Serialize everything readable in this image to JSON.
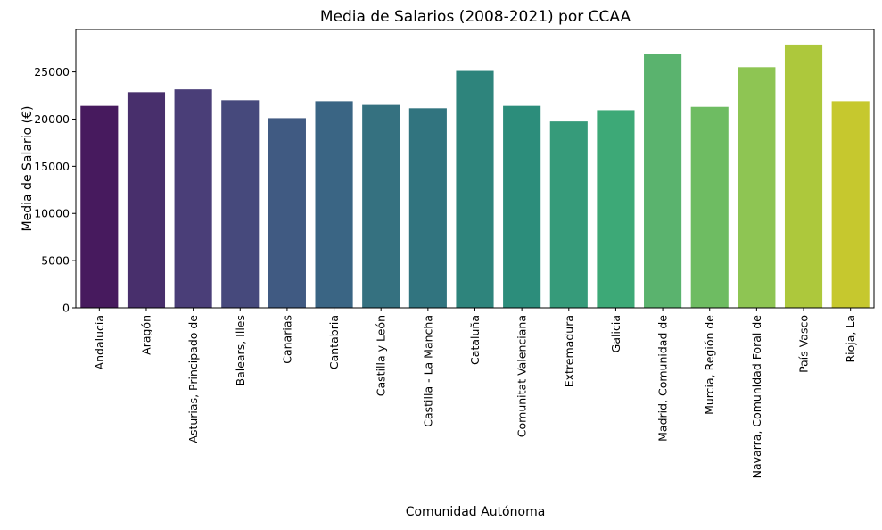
{
  "chart_data": {
    "type": "bar",
    "title": "Media de Salarios (2008-2021) por CCAA",
    "xlabel": "Comunidad Autónoma",
    "ylabel": "Media de Salario (€)",
    "ylim": [
      0,
      29500
    ],
    "yticks": [
      0,
      5000,
      10000,
      15000,
      20000,
      25000
    ],
    "grid": false,
    "legend": "none",
    "categories": [
      "Andalucía",
      "Aragón",
      "Asturias, Principado de",
      "Balears, Illes",
      "Canarias",
      "Cantabria",
      "Castilla y León",
      "Castilla - La Mancha",
      "Cataluña",
      "Comunitat Valenciana",
      "Extremadura",
      "Galicia",
      "Madrid, Comunidad de",
      "Murcia, Región de",
      "Navarra, Comunidad Foral de",
      "País Vasco",
      "Rioja, La"
    ],
    "values": [
      21400,
      22850,
      23150,
      22000,
      20100,
      21900,
      21500,
      21150,
      25100,
      21400,
      19750,
      20950,
      26900,
      21300,
      25500,
      27900,
      21900
    ],
    "colors": [
      "#471a5e",
      "#482f6c",
      "#4a3e78",
      "#46497c",
      "#405a82",
      "#3a6584",
      "#357180",
      "#31747f",
      "#2e847c",
      "#2c8d7b",
      "#369b7a",
      "#3da977",
      "#5ab36e",
      "#6ebc62",
      "#8ec553",
      "#adc83c",
      "#c6c82e"
    ]
  }
}
